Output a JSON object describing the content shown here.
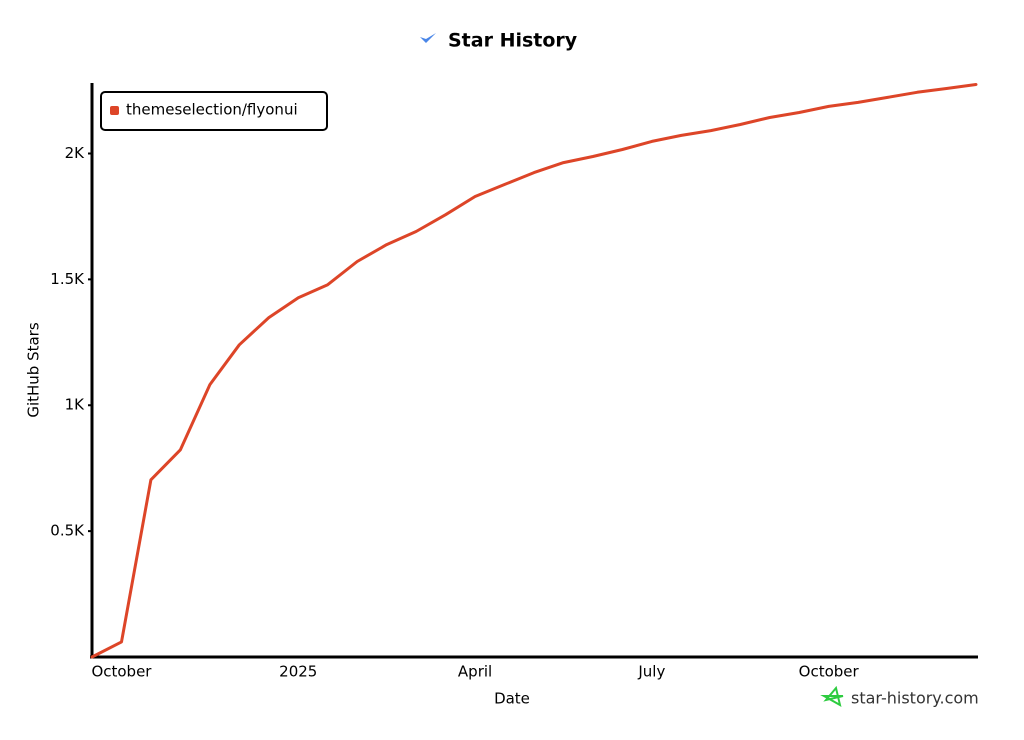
{
  "chart_data": {
    "type": "line",
    "title": "Star History",
    "x_label": "Date",
    "y_label": "GitHub Stars",
    "categories": [
      null,
      "October",
      null,
      null,
      null,
      null,
      null,
      "2025",
      null,
      null,
      null,
      null,
      null,
      "April",
      null,
      null,
      null,
      null,
      null,
      "July",
      null,
      null,
      null,
      null,
      null,
      "October",
      null,
      null,
      null,
      null,
      null
    ],
    "series": [
      {
        "name": "themeselection/flyonui",
        "color": "#dd4528",
        "values": [
          0,
          60,
          704,
          823,
          1082,
          1240,
          1348,
          1427,
          1479,
          1571,
          1638,
          1690,
          1757,
          1829,
          1877,
          1924,
          1964,
          1988,
          2016,
          2048,
          2072,
          2091,
          2115,
          2143,
          2163,
          2187,
          2203,
          2223,
          2243,
          2258,
          2274
        ]
      }
    ],
    "ylim": [
      0,
      2280
    ],
    "yticks": [
      {
        "value": 500,
        "label": "0.5K"
      },
      {
        "value": 1000,
        "label": "1K"
      },
      {
        "value": 1500,
        "label": "1.5K"
      },
      {
        "value": 2000,
        "label": "2K"
      }
    ],
    "grid": false,
    "legend": "top-left",
    "watermark": "star-history.com"
  }
}
